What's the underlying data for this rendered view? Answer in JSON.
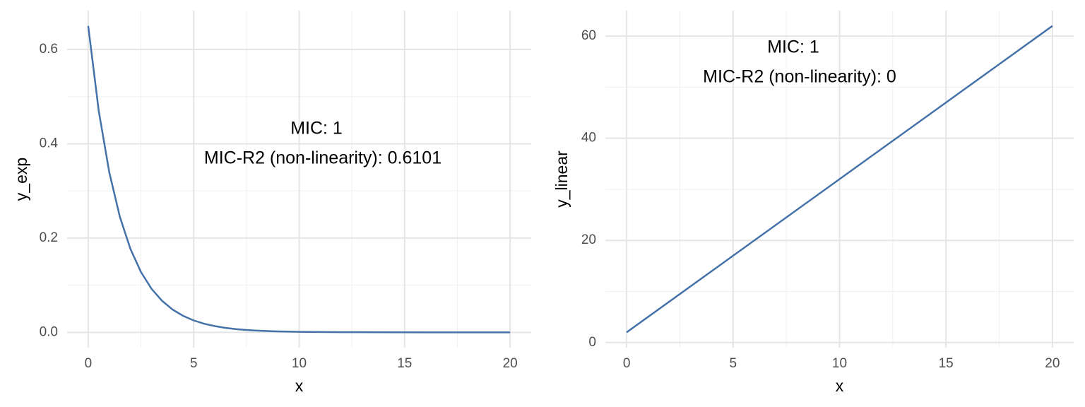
{
  "chart_data": [
    {
      "type": "line",
      "x_label": "x",
      "y_label": "y_exp",
      "x": [
        0,
        0.5,
        1,
        1.5,
        2,
        2.5,
        3,
        3.5,
        4,
        4.5,
        5,
        5.5,
        6,
        6.5,
        7,
        7.5,
        8,
        9,
        10,
        12,
        14,
        16,
        18,
        20
      ],
      "series": [
        {
          "name": "y_exp",
          "color": "#4472a8",
          "values": [
            0.65,
            0.4696,
            0.3393,
            0.2451,
            0.1771,
            0.128,
            0.0924,
            0.0668,
            0.0483,
            0.0349,
            0.0252,
            0.0182,
            0.0132,
            0.0095,
            0.0069,
            0.005,
            0.0036,
            0.0019,
            0.001,
            0.0003,
            0.0001,
            0,
            0,
            0
          ]
        }
      ],
      "annotations": [
        "MIC: 1",
        "MIC-R2 (non-linearity): 0.6101"
      ],
      "xlim": [
        -1,
        21
      ],
      "ylim": [
        -0.0325,
        0.6825
      ],
      "xticks": [
        0,
        5,
        10,
        15,
        20
      ],
      "yticks": [
        {
          "value": 0,
          "label": "0.0"
        },
        0.2,
        0.4,
        0.6
      ],
      "xminor": [
        2.5,
        7.5,
        12.5,
        17.5
      ],
      "yminor": [
        0.1,
        0.3,
        0.5
      ],
      "grid": true
    },
    {
      "type": "line",
      "x_label": "x",
      "y_label": "y_linear",
      "x": [
        0,
        5,
        10,
        15,
        20
      ],
      "series": [
        {
          "name": "y_linear",
          "color": "#4472a8",
          "values": [
            2,
            17,
            32,
            47,
            62
          ]
        }
      ],
      "annotations": [
        "MIC: 1",
        "MIC-R2 (non-linearity): 0"
      ],
      "xlim": [
        -1,
        21
      ],
      "ylim": [
        -1,
        65
      ],
      "xticks": [
        0,
        5,
        10,
        15,
        20
      ],
      "yticks": [
        0,
        20,
        40,
        60
      ],
      "xminor": [
        2.5,
        7.5,
        12.5,
        17.5
      ],
      "yminor": [
        10,
        30,
        50
      ],
      "grid": true
    }
  ]
}
